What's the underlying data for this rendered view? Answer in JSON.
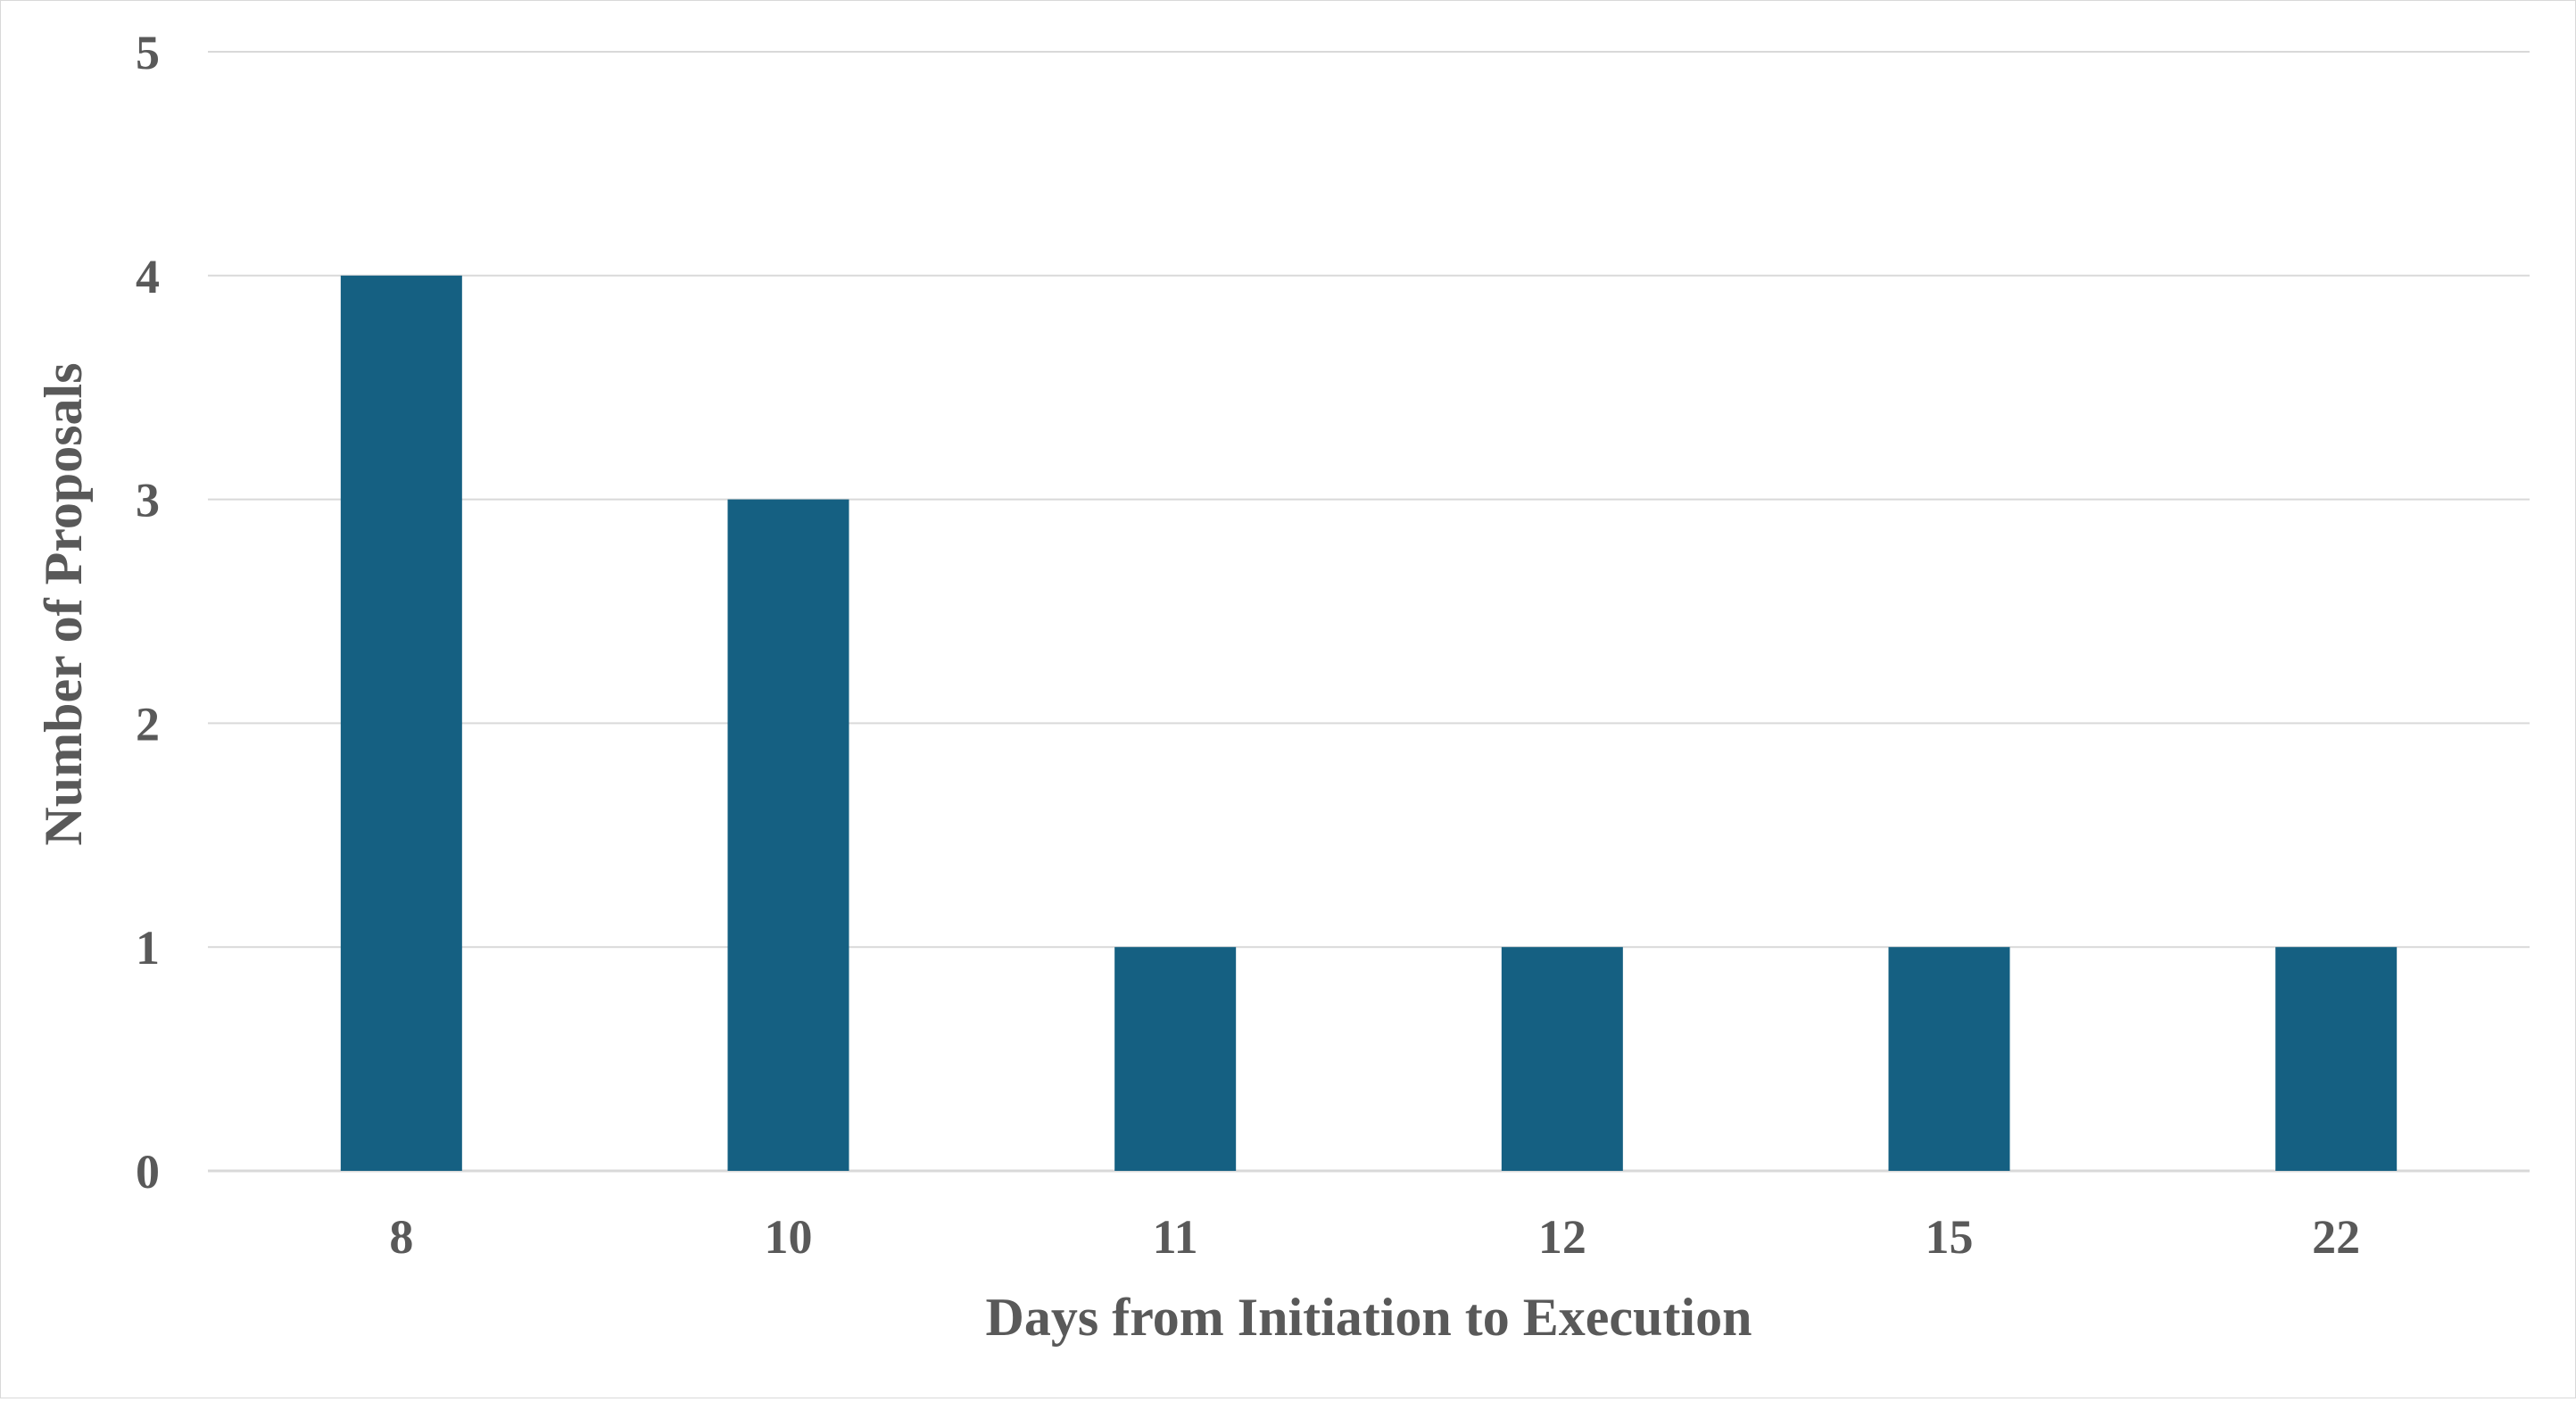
{
  "chart_data": {
    "type": "bar",
    "title": "",
    "xlabel": "Days from Initiation to Execution",
    "ylabel": "Number of Proposals",
    "categories": [
      "8",
      "10",
      "11",
      "12",
      "15",
      "22"
    ],
    "values": [
      4,
      3,
      1,
      1,
      1,
      1
    ],
    "ylim": [
      0,
      5
    ],
    "yticks": [
      "0",
      "1",
      "2",
      "3",
      "4",
      "5"
    ],
    "grid": true,
    "legend": "none",
    "colors": {
      "bar": "#156082",
      "grid": "#d9d9d9",
      "text": "#595959"
    }
  }
}
